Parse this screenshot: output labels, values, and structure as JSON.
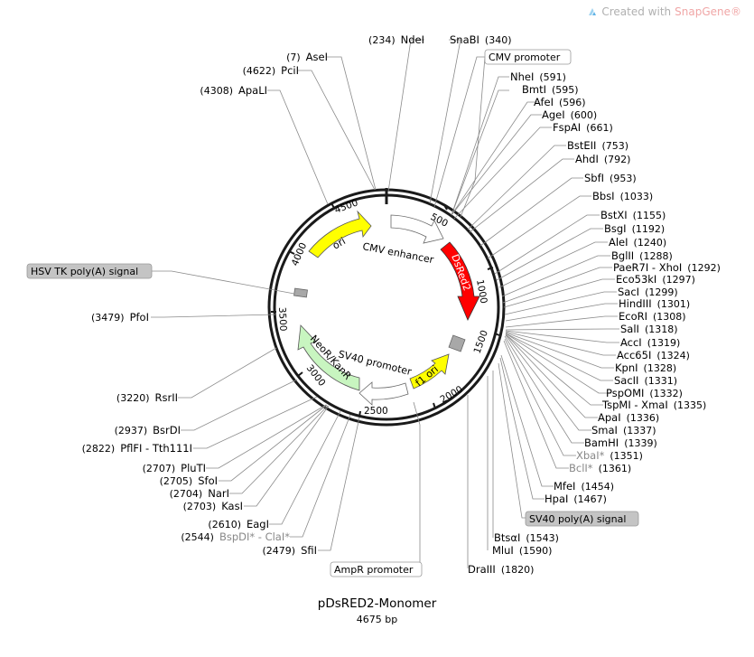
{
  "watermark": {
    "prefix": "Created with",
    "brand": "SnapGene",
    "suffix": "®",
    "logo_icon": "snapgene-logo-icon"
  },
  "plasmid": {
    "name": "pDsRED2-Monomer",
    "length": "4675 bp"
  },
  "ticks": [
    "500",
    "1000",
    "1500",
    "2000",
    "2500",
    "3000",
    "3500",
    "4000",
    "4500"
  ],
  "features": {
    "ori": "ori",
    "cmv_enhancer": "CMV enhancer",
    "dsred2": "DsRed2",
    "f1_ori": "f1 ori",
    "sv40_promoter": "SV40 promoter",
    "neor_kanr": "NeoR/KanR"
  },
  "boxed": {
    "cmv_promoter": "CMV promoter",
    "hsv_tk": "HSV TK poly(A) signal",
    "sv40_polya": "SV40 poly(A) signal",
    "ampr_promoter": "AmpR promoter"
  },
  "sites_left": [
    {
      "name": "NdeI",
      "pos": "(234)"
    },
    {
      "name": "AseI",
      "pos": "(7)"
    },
    {
      "name": "PciI",
      "pos": "(4622)"
    },
    {
      "name": "ApaLI",
      "pos": "(4308)"
    },
    {
      "name": "PfoI",
      "pos": "(3479)"
    },
    {
      "name": "RsrII",
      "pos": "(3220)"
    },
    {
      "name": "BsrDI",
      "pos": "(2937)"
    },
    {
      "name": "PflFI - Tth111I",
      "pos": "(2822)"
    },
    {
      "name": "PluTI",
      "pos": "(2707)"
    },
    {
      "name": "SfoI",
      "pos": "(2705)"
    },
    {
      "name": "NarI",
      "pos": "(2704)"
    },
    {
      "name": "KasI",
      "pos": "(2703)"
    },
    {
      "name": "EagI",
      "pos": "(2610)"
    },
    {
      "name": "BspDI* - ClaI*",
      "pos": "(2544)"
    },
    {
      "name": "SfiI",
      "pos": "(2479)"
    }
  ],
  "sites_right": [
    {
      "name": "SnaBI",
      "pos": "(340)"
    },
    {
      "name": "NheI",
      "pos": "(591)"
    },
    {
      "name": "BmtI",
      "pos": "(595)"
    },
    {
      "name": "AfeI",
      "pos": "(596)"
    },
    {
      "name": "AgeI",
      "pos": "(600)"
    },
    {
      "name": "FspAI",
      "pos": "(661)"
    },
    {
      "name": "BstEII",
      "pos": "(753)"
    },
    {
      "name": "AhdI",
      "pos": "(792)"
    },
    {
      "name": "SbfI",
      "pos": "(953)"
    },
    {
      "name": "BbsI",
      "pos": "(1033)"
    },
    {
      "name": "BstXI",
      "pos": "(1155)"
    },
    {
      "name": "BsgI",
      "pos": "(1192)"
    },
    {
      "name": "AleI",
      "pos": "(1240)"
    },
    {
      "name": "BglII",
      "pos": "(1288)"
    },
    {
      "name": "PaeR7I - XhoI",
      "pos": "(1292)"
    },
    {
      "name": "Eco53kI",
      "pos": "(1297)"
    },
    {
      "name": "SacI",
      "pos": "(1299)"
    },
    {
      "name": "HindIII",
      "pos": "(1301)"
    },
    {
      "name": "EcoRI",
      "pos": "(1308)"
    },
    {
      "name": "SalI",
      "pos": "(1318)"
    },
    {
      "name": "AccI",
      "pos": "(1319)"
    },
    {
      "name": "Acc65I",
      "pos": "(1324)"
    },
    {
      "name": "KpnI",
      "pos": "(1328)"
    },
    {
      "name": "SacII",
      "pos": "(1331)"
    },
    {
      "name": "PspOMI",
      "pos": "(1332)"
    },
    {
      "name": "TspMI - XmaI",
      "pos": "(1335)"
    },
    {
      "name": "ApaI",
      "pos": "(1336)"
    },
    {
      "name": "SmaI",
      "pos": "(1337)"
    },
    {
      "name": "BamHI",
      "pos": "(1339)"
    },
    {
      "name": "XbaI*",
      "pos": "(1351)"
    },
    {
      "name": "BclI*",
      "pos": "(1361)"
    },
    {
      "name": "MfeI",
      "pos": "(1454)"
    },
    {
      "name": "HpaI",
      "pos": "(1467)"
    },
    {
      "name": "BtsαI",
      "pos": "(1543)"
    },
    {
      "name": "MluI",
      "pos": "(1590)"
    },
    {
      "name": "DraIII",
      "pos": "(1820)"
    }
  ],
  "colors": {
    "backbone": "#1a1a1a",
    "ori": "#ffff00",
    "dsred2": "#ff0000",
    "f1_ori": "#ffff00",
    "neor_kanr": "#c8f5c0",
    "promoter_arrow": "#ffffff",
    "polya_box": "#a8a8a8",
    "boxed_label_fill": "#c4c4c4"
  }
}
